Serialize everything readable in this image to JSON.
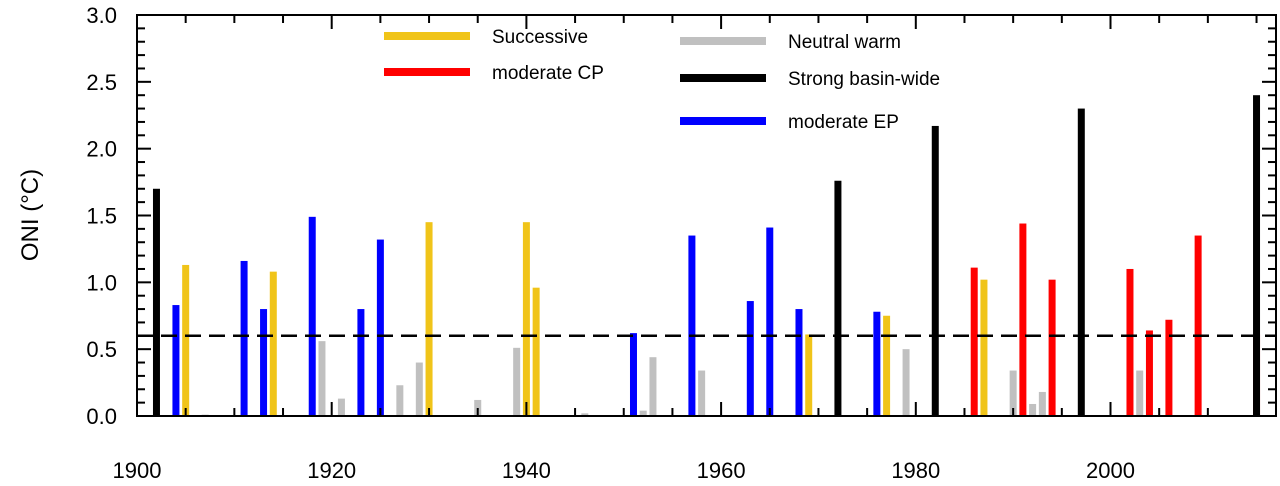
{
  "chart_data": {
    "type": "bar",
    "title": "",
    "ylabel": "ONI (°C)",
    "xlabel": "",
    "xlim": [
      1900,
      2017
    ],
    "ylim": [
      0,
      3.0
    ],
    "grid": false,
    "x_ticks": [
      1900,
      1920,
      1940,
      1960,
      1980,
      2000
    ],
    "x_tick_labels": [
      "1900",
      "1920",
      "1940",
      "1960",
      "1980",
      "2000"
    ],
    "y_ticks": [
      0,
      0.5,
      1.0,
      1.5,
      2.0,
      2.5,
      3.0
    ],
    "y_tick_labels": [
      "0.0",
      "0.5",
      "1.0",
      "1.5",
      "2.0",
      "2.5",
      "3.0"
    ],
    "threshold": 0.6,
    "legend_position": "top",
    "series": [
      {
        "name": "Successive",
        "color": "#f0c419",
        "points": [
          [
            1905,
            1.13
          ],
          [
            1914,
            1.08
          ],
          [
            1930,
            1.45
          ],
          [
            1940,
            1.45
          ],
          [
            1941,
            0.96
          ],
          [
            1969,
            0.61
          ],
          [
            1977,
            0.75
          ],
          [
            1987,
            1.02
          ]
        ]
      },
      {
        "name": "moderate CP",
        "color": "#ff0000",
        "points": [
          [
            1986,
            1.11
          ],
          [
            1991,
            1.44
          ],
          [
            1994,
            1.02
          ],
          [
            2002,
            1.1
          ],
          [
            2004,
            0.64
          ],
          [
            2006,
            0.72
          ],
          [
            2009,
            1.35
          ],
          [
            2015,
            0.61
          ]
        ]
      },
      {
        "name": "Neutral warm",
        "color": "#c0c0c0",
        "points": [
          [
            1907,
            0.01
          ],
          [
            1919,
            0.56
          ],
          [
            1921,
            0.13
          ],
          [
            1927,
            0.23
          ],
          [
            1929,
            0.4
          ],
          [
            1935,
            0.12
          ],
          [
            1939,
            0.51
          ],
          [
            1946,
            0.02
          ],
          [
            1952,
            0.04
          ],
          [
            1953,
            0.44
          ],
          [
            1958,
            0.34
          ],
          [
            1979,
            0.5
          ],
          [
            1990,
            0.34
          ],
          [
            1992,
            0.09
          ],
          [
            1993,
            0.18
          ],
          [
            2003,
            0.34
          ]
        ]
      },
      {
        "name": "Strong basin-wide",
        "color": "#000000",
        "points": [
          [
            1902,
            1.7
          ],
          [
            1972,
            1.76
          ],
          [
            1982,
            2.17
          ],
          [
            1997,
            2.3
          ],
          [
            2015,
            2.4
          ]
        ]
      },
      {
        "name": "moderate EP",
        "color": "#0000ff",
        "points": [
          [
            1904,
            0.83
          ],
          [
            1911,
            1.16
          ],
          [
            1913,
            0.8
          ],
          [
            1918,
            1.49
          ],
          [
            1923,
            0.8
          ],
          [
            1925,
            1.32
          ],
          [
            1951,
            0.62
          ],
          [
            1957,
            1.35
          ],
          [
            1963,
            0.86
          ],
          [
            1965,
            1.41
          ],
          [
            1968,
            0.8
          ],
          [
            1976,
            0.78
          ]
        ]
      }
    ]
  }
}
